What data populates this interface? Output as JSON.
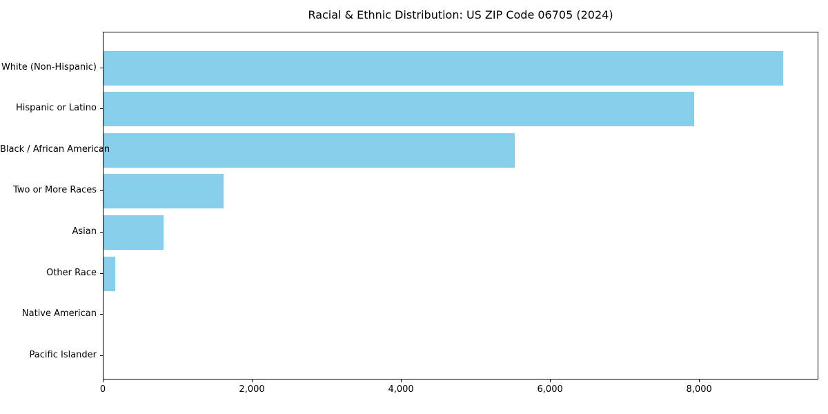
{
  "chart_data": {
    "type": "bar",
    "orientation": "horizontal",
    "title": "Racial & Ethnic Distribution: US ZIP Code 06705 (2024)",
    "categories": [
      "White (Non-Hispanic)",
      "Hispanic or Latino",
      "Black / African American",
      "Two or More Races",
      "Asian",
      "Other Race",
      "Native American",
      "Pacific Islander"
    ],
    "values": [
      9140,
      7940,
      5530,
      1610,
      810,
      160,
      0,
      0
    ],
    "xlabel": "",
    "ylabel": "",
    "xlim": [
      0,
      9600
    ],
    "xticks": [
      0,
      2000,
      4000,
      6000,
      8000
    ],
    "xtick_labels": [
      "0",
      "2,000",
      "4,000",
      "6,000",
      "8,000"
    ],
    "grid": false,
    "legend": null,
    "colors": {
      "bar": "#87CEEB",
      "axis": "#000000",
      "text": "#000000",
      "background": "#ffffff"
    }
  }
}
